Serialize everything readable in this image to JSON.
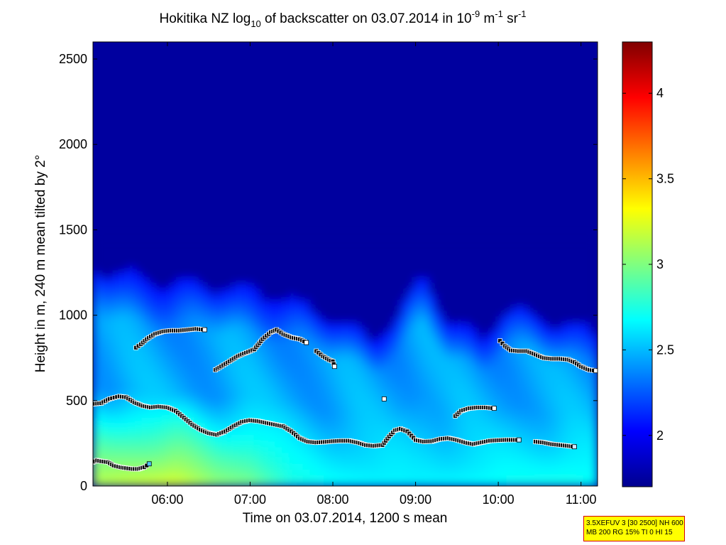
{
  "title": {
    "parts": [
      {
        "t": "Hokitika NZ log",
        "s": "n"
      },
      {
        "t": "10",
        "s": "sub"
      },
      {
        "t": " of backscatter on 03.07.2014 in 10",
        "s": "n"
      },
      {
        "t": "-9",
        "s": "sup"
      },
      {
        "t": " m",
        "s": "n"
      },
      {
        "t": "-1",
        "s": "sup"
      },
      {
        "t": " sr",
        "s": "n"
      },
      {
        "t": "-1",
        "s": "sup"
      }
    ]
  },
  "info_box": {
    "line1": "3.5XEFUV 3 [30 2500] NH 600",
    "line2": "MB 200 RG 15% TI 0 HI 15"
  },
  "colors": {
    "background_top": "#00008b",
    "marker_outline": "#000000"
  },
  "chart_data": {
    "type": "heatmap",
    "xlabel": "Time on 03.07.2014, 1200 s mean",
    "ylabel": "Height in m, 240 m mean tilted by 2°",
    "x_ticks": [
      {
        "v": 6.0,
        "label": "06:00"
      },
      {
        "v": 7.0,
        "label": "07:00"
      },
      {
        "v": 8.0,
        "label": "08:00"
      },
      {
        "v": 9.0,
        "label": "09:00"
      },
      {
        "v": 10.0,
        "label": "10:00"
      },
      {
        "v": 11.0,
        "label": "11:00"
      }
    ],
    "y_ticks": [
      0,
      500,
      1000,
      1500,
      2000,
      2500
    ],
    "xlim": [
      5.1,
      11.2
    ],
    "ylim": [
      0,
      2600
    ],
    "colorbar": {
      "range": [
        1.7,
        4.3
      ],
      "ticks": [
        2,
        2.5,
        3,
        3.5,
        4
      ],
      "colormap": "jet"
    },
    "field": {
      "description": "backscatter log10 values vs time and height",
      "top_of_layer_m": [
        {
          "x": 5.1,
          "h": 1290
        },
        {
          "x": 5.5,
          "h": 1240
        },
        {
          "x": 6.0,
          "h": 1180
        },
        {
          "x": 6.5,
          "h": 1180
        },
        {
          "x": 7.0,
          "h": 1150
        },
        {
          "x": 7.5,
          "h": 1080
        },
        {
          "x": 8.0,
          "h": 980
        },
        {
          "x": 8.5,
          "h": 860
        },
        {
          "x": 8.8,
          "h": 1000
        },
        {
          "x": 9.1,
          "h": 1240
        },
        {
          "x": 9.4,
          "h": 960
        },
        {
          "x": 9.8,
          "h": 860
        },
        {
          "x": 10.1,
          "h": 1040
        },
        {
          "x": 10.5,
          "h": 980
        },
        {
          "x": 11.0,
          "h": 930
        },
        {
          "x": 11.2,
          "h": 900
        }
      ],
      "surface_value": [
        {
          "x": 5.1,
          "v": 3.15
        },
        {
          "x": 5.6,
          "v": 3.2
        },
        {
          "x": 6.1,
          "v": 3.25
        },
        {
          "x": 6.6,
          "v": 3.05
        },
        {
          "x": 7.0,
          "v": 3.0
        },
        {
          "x": 7.5,
          "v": 2.75
        },
        {
          "x": 8.0,
          "v": 2.7
        },
        {
          "x": 9.0,
          "v": 2.65
        },
        {
          "x": 10.0,
          "v": 2.7
        },
        {
          "x": 10.8,
          "v": 2.75
        },
        {
          "x": 11.2,
          "v": 2.7
        }
      ]
    },
    "series": [
      {
        "style": "low-layer",
        "points": [
          [
            5.1,
            140
          ],
          [
            5.15,
            150
          ],
          [
            5.2,
            145
          ],
          [
            5.28,
            140
          ],
          [
            5.35,
            120
          ],
          [
            5.43,
            110
          ],
          [
            5.5,
            105
          ],
          [
            5.58,
            100
          ],
          [
            5.65,
            100
          ],
          [
            5.72,
            110
          ],
          [
            5.78,
            130
          ]
        ]
      },
      {
        "style": "main-layer",
        "points": [
          [
            5.1,
            480
          ],
          [
            5.2,
            485
          ],
          [
            5.3,
            510
          ],
          [
            5.42,
            525
          ],
          [
            5.5,
            520
          ],
          [
            5.6,
            490
          ],
          [
            5.7,
            470
          ],
          [
            5.8,
            460
          ],
          [
            5.9,
            465
          ],
          [
            6.0,
            460
          ],
          [
            6.1,
            440
          ],
          [
            6.2,
            400
          ],
          [
            6.3,
            360
          ],
          [
            6.4,
            330
          ],
          [
            6.5,
            310
          ],
          [
            6.6,
            300
          ],
          [
            6.7,
            320
          ],
          [
            6.8,
            350
          ],
          [
            6.9,
            375
          ],
          [
            7.0,
            385
          ],
          [
            7.1,
            380
          ],
          [
            7.2,
            370
          ],
          [
            7.3,
            360
          ],
          [
            7.4,
            350
          ],
          [
            7.5,
            320
          ],
          [
            7.6,
            280
          ],
          [
            7.7,
            260
          ],
          [
            7.8,
            255
          ],
          [
            7.9,
            258
          ],
          [
            8.0,
            262
          ],
          [
            8.1,
            265
          ],
          [
            8.2,
            265
          ],
          [
            8.3,
            255
          ],
          [
            8.4,
            240
          ],
          [
            8.5,
            235
          ],
          [
            8.6,
            240
          ],
          [
            8.68,
            290
          ],
          [
            8.75,
            325
          ],
          [
            8.82,
            335
          ],
          [
            8.9,
            320
          ],
          [
            9.0,
            270
          ],
          [
            9.1,
            260
          ],
          [
            9.2,
            262
          ],
          [
            9.3,
            275
          ],
          [
            9.4,
            280
          ],
          [
            9.5,
            270
          ],
          [
            9.6,
            255
          ],
          [
            9.7,
            245
          ],
          [
            9.8,
            255
          ],
          [
            9.9,
            265
          ],
          [
            10.0,
            268
          ],
          [
            10.1,
            270
          ],
          [
            10.2,
            270
          ],
          [
            10.25,
            270
          ]
        ]
      },
      {
        "style": "main-layer",
        "points": [
          [
            10.45,
            260
          ],
          [
            10.55,
            255
          ],
          [
            10.65,
            245
          ],
          [
            10.75,
            240
          ],
          [
            10.85,
            235
          ],
          [
            10.92,
            230
          ]
        ]
      },
      {
        "style": "upper-layer",
        "points": [
          [
            5.62,
            810
          ],
          [
            5.68,
            830
          ],
          [
            5.75,
            860
          ],
          [
            5.85,
            890
          ],
          [
            5.95,
            905
          ],
          [
            6.05,
            910
          ],
          [
            6.15,
            910
          ],
          [
            6.25,
            915
          ],
          [
            6.35,
            920
          ],
          [
            6.45,
            915
          ]
        ]
      },
      {
        "style": "upper-layer",
        "points": [
          [
            6.58,
            680
          ],
          [
            6.65,
            700
          ],
          [
            6.75,
            730
          ],
          [
            6.85,
            760
          ],
          [
            6.95,
            780
          ],
          [
            7.05,
            800
          ],
          [
            7.15,
            860
          ],
          [
            7.25,
            900
          ],
          [
            7.32,
            915
          ],
          [
            7.4,
            890
          ],
          [
            7.5,
            870
          ],
          [
            7.6,
            860
          ],
          [
            7.68,
            840
          ]
        ]
      },
      {
        "style": "upper-layer",
        "points": [
          [
            7.8,
            790
          ],
          [
            7.88,
            760
          ],
          [
            7.95,
            740
          ],
          [
            8.0,
            730
          ],
          [
            8.02,
            700
          ]
        ]
      },
      {
        "style": "upper-layer",
        "points": [
          [
            8.62,
            510
          ]
        ]
      },
      {
        "style": "upper-layer",
        "points": [
          [
            9.48,
            410
          ],
          [
            9.55,
            440
          ],
          [
            9.65,
            455
          ],
          [
            9.75,
            460
          ],
          [
            9.85,
            460
          ],
          [
            9.95,
            455
          ]
        ]
      },
      {
        "style": "upper-layer",
        "points": [
          [
            10.02,
            850
          ],
          [
            10.08,
            820
          ],
          [
            10.15,
            795
          ],
          [
            10.25,
            790
          ],
          [
            10.35,
            790
          ],
          [
            10.45,
            770
          ],
          [
            10.55,
            750
          ],
          [
            10.65,
            745
          ],
          [
            10.75,
            745
          ],
          [
            10.85,
            740
          ],
          [
            10.92,
            725
          ],
          [
            11.0,
            700
          ],
          [
            11.1,
            680
          ],
          [
            11.18,
            675
          ]
        ]
      }
    ]
  }
}
